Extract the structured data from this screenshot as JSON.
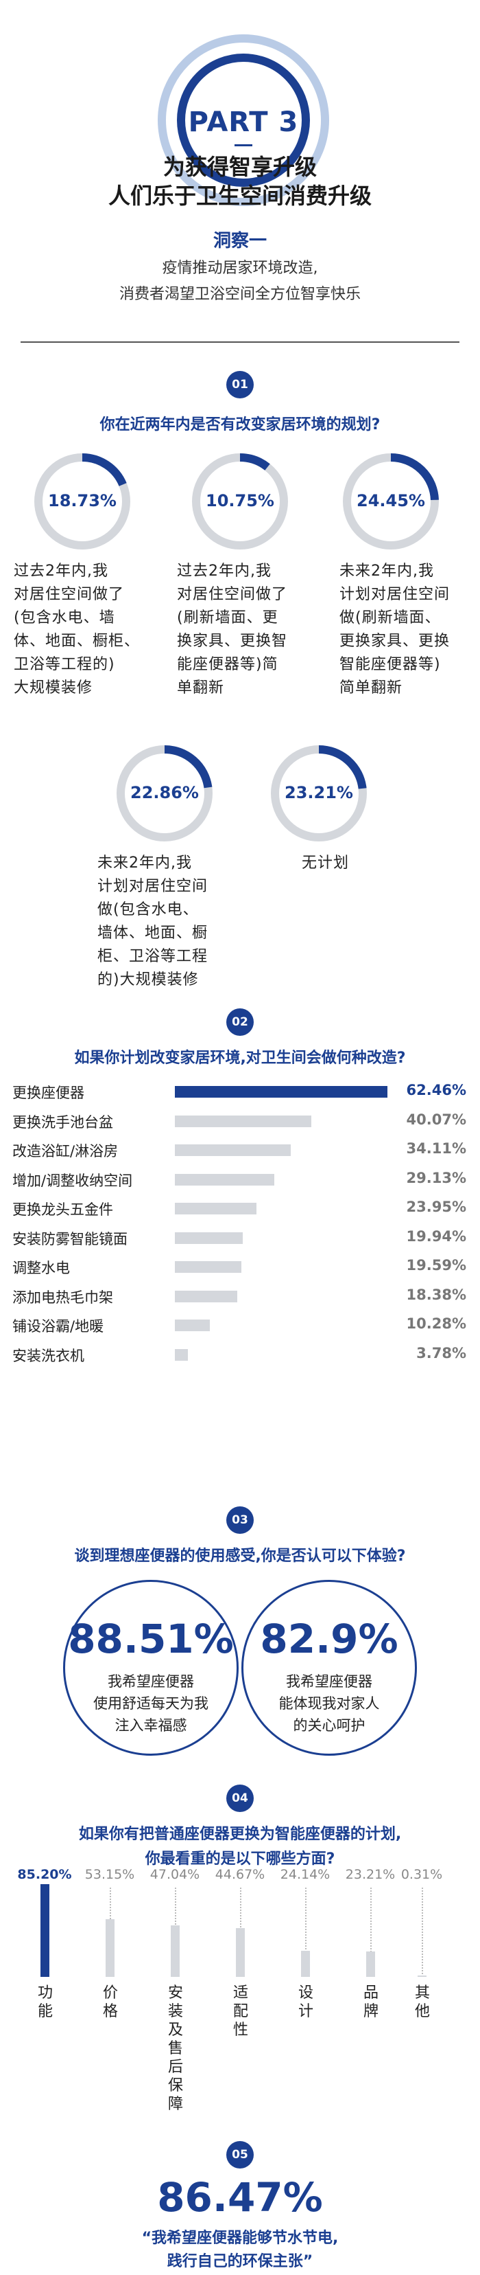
{
  "part": {
    "label": "PART 3",
    "title_line1": "为获得智享升级",
    "title_line2": "人们乐于卫生空间消费升级"
  },
  "insight": {
    "title": "洞察一",
    "sub_line1": "疫情推动居家环境改造,",
    "sub_line2": "消费者渴望卫浴空间全方位智享快乐"
  },
  "colors": {
    "primary": "#1b3f91",
    "track": "#d4d7dc",
    "light_ring": "#b9cbe6",
    "muted_value": "#888888"
  },
  "sections": [
    {
      "num": "01",
      "question": "你在近两年内是否有改变家居环境的规划?"
    },
    {
      "num": "02",
      "question": "如果你计划改变家居环境,对卫生间会做何种改造?"
    },
    {
      "num": "03",
      "question": "谈到理想座便器的使用感受,你是否认可以下体验?"
    },
    {
      "num": "04",
      "question_line1": "如果你有把普通座便器更换为智能座便器的计划,",
      "question_line2": "你最看重的是以下哪些方面?"
    },
    {
      "num": "05"
    }
  ],
  "chart_data": [
    {
      "type": "pie",
      "style": "donut",
      "values": [
        18.73,
        10.75,
        24.45,
        22.86,
        23.21
      ],
      "labels": [
        "18.73%",
        "10.75%",
        "24.45%",
        "22.86%",
        "23.21%"
      ],
      "categories": [
        "过去2年内,我对居住空间做了(包含水电、墙体、地面、橱柜、卫浴等工程的)大规模装修",
        "过去2年内,我对居住空间做了(刷新墙面、更换家具、更换智能座便器等)简单翻新",
        "未来2年内,我计划对居住空间做(刷新墙面、更换家具、更换智能座便器等)简单翻新",
        "未来2年内,我计划对居住空间做(包含水电、墙体、地面、橱柜、卫浴等工程的)大规模装修",
        "无计划"
      ],
      "desc_lines": [
        [
          "过去2年内,我",
          "对居住空间做了",
          "(包含水电、墙",
          "体、地面、橱柜、",
          "卫浴等工程的)",
          "大规模装修"
        ],
        [
          "过去2年内,我",
          "对居住空间做了",
          "(刷新墙面、更",
          "换家具、更换智",
          "能座便器等)简",
          "单翻新"
        ],
        [
          "未来2年内,我",
          "计划对居住空间",
          "做(刷新墙面、",
          "更换家具、更换",
          "智能座便器等)",
          "简单翻新"
        ],
        [
          "未来2年内,我",
          "计划对居住空间",
          "做(包含水电、",
          "墙体、地面、橱",
          "柜、卫浴等工程",
          "的)大规模装修"
        ],
        [
          "无计划"
        ]
      ]
    },
    {
      "type": "bar",
      "orientation": "horizontal",
      "categories": [
        "更换座便器",
        "更换洗手池台盆",
        "改造浴缸/淋浴房",
        "增加/调整收纳空间",
        "更换龙头五金件",
        "安装防雾智能镜面",
        "调整水电",
        "添加电热毛巾架",
        "铺设浴霸/地暖",
        "安装洗衣机"
      ],
      "values": [
        62.46,
        40.07,
        34.11,
        29.13,
        23.95,
        19.94,
        19.59,
        18.38,
        10.28,
        3.78
      ],
      "labels": [
        "62.46%",
        "40.07%",
        "34.11%",
        "29.13%",
        "23.95%",
        "19.94%",
        "19.59%",
        "18.38%",
        "10.28%",
        "3.78%"
      ],
      "xlim": [
        0,
        62.46
      ]
    },
    {
      "type": "table",
      "values": [
        88.51,
        82.9
      ],
      "labels": [
        "88.51%",
        "82.9%"
      ],
      "texts": [
        [
          "我希望座便器",
          "使用舒适每天为我",
          "注入幸福感"
        ],
        [
          "我希望座便器",
          "能体现我对家人",
          "的关心呵护"
        ]
      ]
    },
    {
      "type": "bar",
      "orientation": "vertical",
      "categories": [
        "功能",
        "价格",
        "安装及售后保障",
        "适配性",
        "设计",
        "品牌",
        "其他"
      ],
      "values": [
        85.2,
        53.15,
        47.04,
        44.67,
        24.14,
        23.21,
        0.31
      ],
      "labels": [
        "85.20%",
        "53.15%",
        "47.04%",
        "44.67%",
        "24.14%",
        "23.21%",
        "0.31%"
      ],
      "ylim": [
        0,
        85.2
      ]
    },
    {
      "type": "table",
      "values": [
        86.47
      ],
      "labels": [
        "86.47%"
      ],
      "texts": [
        [
          "“我希望座便器能够节水节电,",
          "践行自己的环保主张”"
        ]
      ]
    }
  ]
}
